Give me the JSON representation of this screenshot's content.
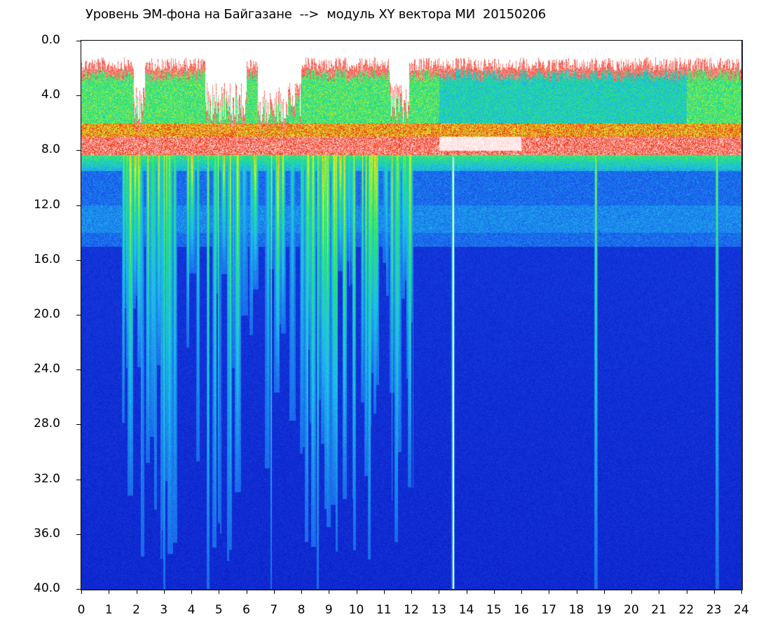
{
  "title": "Уровень ЭМ-фона на Байгазане  -->  модуль XY вектора МИ  20150206",
  "chart_data": {
    "type": "heatmap",
    "title": "Уровень ЭМ-фона на Байгазане  -->  модуль XY вектора МИ  20150206",
    "xlabel": "",
    "ylabel": "",
    "x_range": [
      0,
      24
    ],
    "y_range": [
      0,
      40
    ],
    "y_inverted": true,
    "x_ticks": [
      "0",
      "1",
      "2",
      "3",
      "4",
      "5",
      "6",
      "7",
      "8",
      "9",
      "10",
      "11",
      "12",
      "13",
      "14",
      "15",
      "16",
      "17",
      "18",
      "19",
      "20",
      "21",
      "22",
      "23",
      "24"
    ],
    "y_ticks": [
      "0.0",
      "4.0",
      "8.0",
      "12.0",
      "16.0",
      "20.0",
      "24.0",
      "28.0",
      "32.0",
      "36.0",
      "40.0"
    ],
    "colormap": [
      "#0a1ec8",
      "#1d5cf0",
      "#18c8e8",
      "#20e860",
      "#f0f020",
      "#f02010",
      "#ffffff"
    ],
    "intensity_bands": [
      {
        "y_from": 1.0,
        "y_to": 6.0,
        "level": "green-cyan"
      },
      {
        "y_from": 6.0,
        "y_to": 8.5,
        "level": "red-white"
      },
      {
        "y_from": 8.5,
        "y_to": 15.0,
        "level": "blue-cyan"
      },
      {
        "y_from": 15.0,
        "y_to": 40.0,
        "level": "blue"
      }
    ],
    "bright_vertical_lines_x": [
      3.0,
      4.6,
      6.9,
      8.6,
      13.5,
      18.7,
      23.1
    ],
    "grid": false,
    "legend": "none"
  }
}
